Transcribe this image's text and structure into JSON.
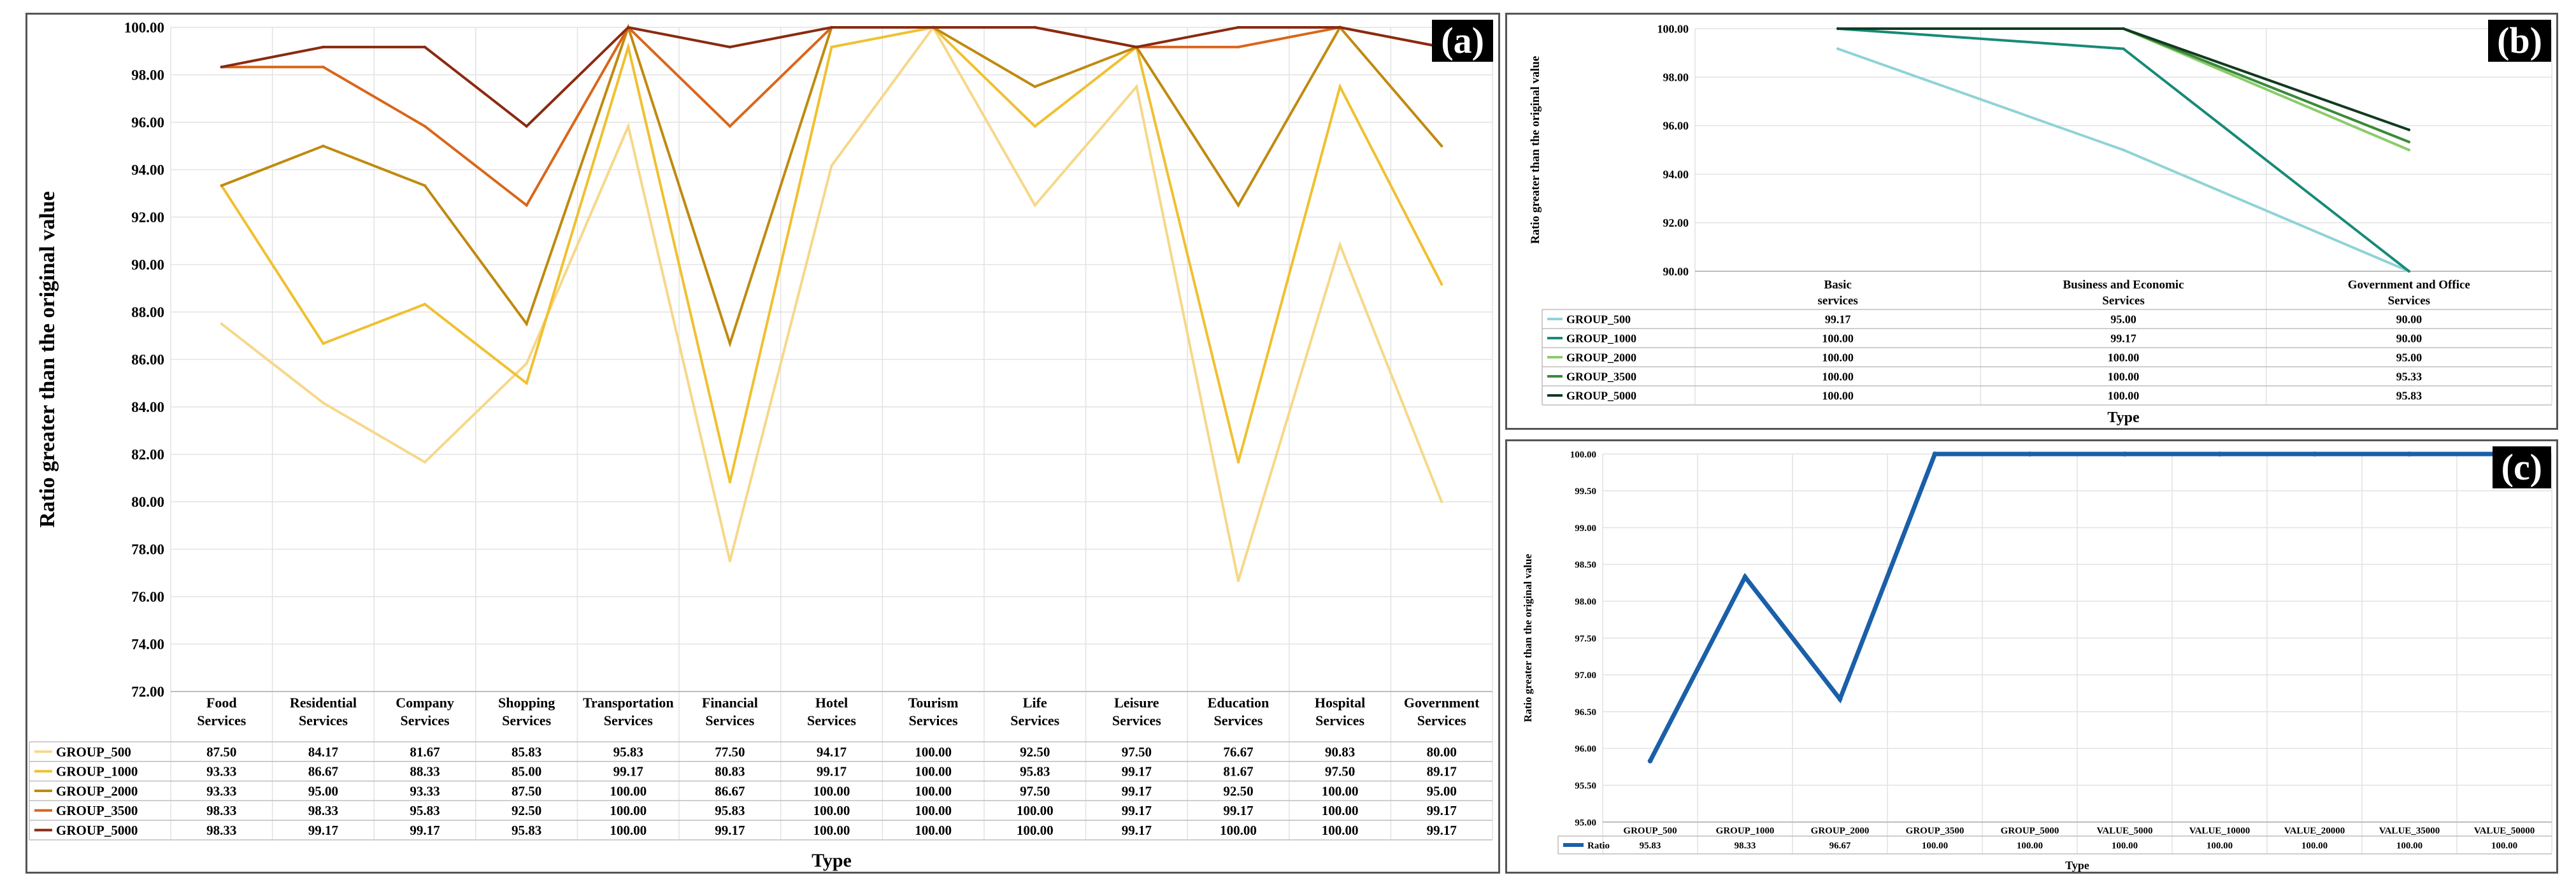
{
  "chart_data": [
    {
      "panel_label": "(a)",
      "type": "line",
      "xlabel": "Type",
      "ylabel": "Ratio greater than the original value",
      "ylim": [
        72,
        100
      ],
      "yticks": [
        "72.00",
        "74.00",
        "76.00",
        "78.00",
        "80.00",
        "82.00",
        "84.00",
        "86.00",
        "88.00",
        "90.00",
        "92.00",
        "94.00",
        "96.00",
        "98.00",
        "100.00"
      ],
      "categories": [
        [
          "Food",
          "Services"
        ],
        [
          "Residential",
          "Services"
        ],
        [
          "Company",
          "Services"
        ],
        [
          "Shopping",
          "Services"
        ],
        [
          "Transportation",
          "Services"
        ],
        [
          "Financial",
          "Services"
        ],
        [
          "Hotel",
          "Services"
        ],
        [
          "Tourism",
          "Services"
        ],
        [
          "Life",
          "Services"
        ],
        [
          "Leisure",
          "Services"
        ],
        [
          "Education",
          "Services"
        ],
        [
          "Hospital",
          "Services"
        ],
        [
          "Government",
          "Services"
        ]
      ],
      "series": [
        {
          "name": "GROUP_500",
          "color": "#f6d88a",
          "values": [
            87.5,
            84.17,
            81.67,
            85.83,
            95.83,
            77.5,
            94.17,
            100.0,
            92.5,
            97.5,
            76.67,
            90.83,
            80.0
          ]
        },
        {
          "name": "GROUP_1000",
          "color": "#f0c030",
          "values": [
            93.33,
            86.67,
            88.33,
            85.0,
            99.17,
            80.83,
            99.17,
            100.0,
            95.83,
            99.17,
            81.67,
            97.5,
            89.17
          ]
        },
        {
          "name": "GROUP_2000",
          "color": "#c08a10",
          "values": [
            93.33,
            95.0,
            93.33,
            87.5,
            100.0,
            86.67,
            100.0,
            100.0,
            97.5,
            99.17,
            92.5,
            100.0,
            95.0
          ]
        },
        {
          "name": "GROUP_3500",
          "color": "#d9661a",
          "values": [
            98.33,
            98.33,
            95.83,
            92.5,
            100.0,
            95.83,
            100.0,
            100.0,
            100.0,
            99.17,
            99.17,
            100.0,
            99.17
          ]
        },
        {
          "name": "GROUP_5000",
          "color": "#8a2a10",
          "values": [
            98.33,
            99.17,
            99.17,
            95.83,
            100.0,
            99.17,
            100.0,
            100.0,
            100.0,
            99.17,
            100.0,
            100.0,
            99.17
          ]
        }
      ],
      "table_values": [
        [
          "87.50",
          "84.17",
          "81.67",
          "85.83",
          "95.83",
          "77.50",
          "94.17",
          "100.00",
          "92.50",
          "97.50",
          "76.67",
          "90.83",
          "80.00"
        ],
        [
          "93.33",
          "86.67",
          "88.33",
          "85.00",
          "99.17",
          "80.83",
          "99.17",
          "100.00",
          "95.83",
          "99.17",
          "81.67",
          "97.50",
          "89.17"
        ],
        [
          "93.33",
          "95.00",
          "93.33",
          "87.50",
          "100.00",
          "86.67",
          "100.00",
          "100.00",
          "97.50",
          "99.17",
          "92.50",
          "100.00",
          "95.00"
        ],
        [
          "98.33",
          "98.33",
          "95.83",
          "92.50",
          "100.00",
          "95.83",
          "100.00",
          "100.00",
          "100.00",
          "99.17",
          "99.17",
          "100.00",
          "99.17"
        ],
        [
          "98.33",
          "99.17",
          "99.17",
          "95.83",
          "100.00",
          "99.17",
          "100.00",
          "100.00",
          "100.00",
          "99.17",
          "100.00",
          "100.00",
          "99.17"
        ]
      ]
    },
    {
      "panel_label": "(b)",
      "type": "line",
      "xlabel": "Type",
      "ylabel": "Ratio greater than the original value",
      "ylim": [
        90,
        100
      ],
      "yticks": [
        "90.00",
        "92.00",
        "94.00",
        "96.00",
        "98.00",
        "100.00"
      ],
      "categories": [
        [
          "Basic",
          "services"
        ],
        [
          "Business and Economic",
          "Services"
        ],
        [
          "Government and Office",
          "Services"
        ]
      ],
      "series": [
        {
          "name": "GROUP_500",
          "color": "#8fd3d6",
          "values": [
            99.17,
            95.0,
            90.0
          ]
        },
        {
          "name": "GROUP_1000",
          "color": "#178a78",
          "values": [
            100.0,
            99.17,
            90.0
          ]
        },
        {
          "name": "GROUP_2000",
          "color": "#8ccb6a",
          "values": [
            100.0,
            100.0,
            95.0
          ]
        },
        {
          "name": "GROUP_3500",
          "color": "#3a8a3a",
          "values": [
            100.0,
            100.0,
            95.33
          ]
        },
        {
          "name": "GROUP_5000",
          "color": "#123a20",
          "values": [
            100.0,
            100.0,
            95.83
          ]
        }
      ],
      "table_values": [
        [
          "99.17",
          "95.00",
          "90.00"
        ],
        [
          "100.00",
          "99.17",
          "90.00"
        ],
        [
          "100.00",
          "100.00",
          "95.00"
        ],
        [
          "100.00",
          "100.00",
          "95.33"
        ],
        [
          "100.00",
          "100.00",
          "95.83"
        ]
      ]
    },
    {
      "panel_label": "(c)",
      "type": "line",
      "xlabel": "Type",
      "ylabel": "Ratio greater than the original value",
      "ylim": [
        95,
        100
      ],
      "yticks": [
        "95.00",
        "95.50",
        "96.00",
        "96.50",
        "97.00",
        "97.50",
        "98.00",
        "98.50",
        "99.00",
        "99.50",
        "100.00"
      ],
      "categories": [
        [
          "GROUP_500"
        ],
        [
          "GROUP_1000"
        ],
        [
          "GROUP_2000"
        ],
        [
          "GROUP_3500"
        ],
        [
          "GROUP_5000"
        ],
        [
          "VALUE_5000"
        ],
        [
          "VALUE_10000"
        ],
        [
          "VALUE_20000"
        ],
        [
          "VALUE_35000"
        ],
        [
          "VALUE_50000"
        ]
      ],
      "series": [
        {
          "name": "Ratio",
          "color": "#1a5fa8",
          "values": [
            95.83,
            98.33,
            96.67,
            100.0,
            100.0,
            100.0,
            100.0,
            100.0,
            100.0,
            100.0
          ]
        }
      ],
      "table_values": [
        [
          "95.83",
          "98.33",
          "96.67",
          "100.00",
          "100.00",
          "100.00",
          "100.00",
          "100.00",
          "100.00",
          "100.00"
        ]
      ]
    }
  ]
}
